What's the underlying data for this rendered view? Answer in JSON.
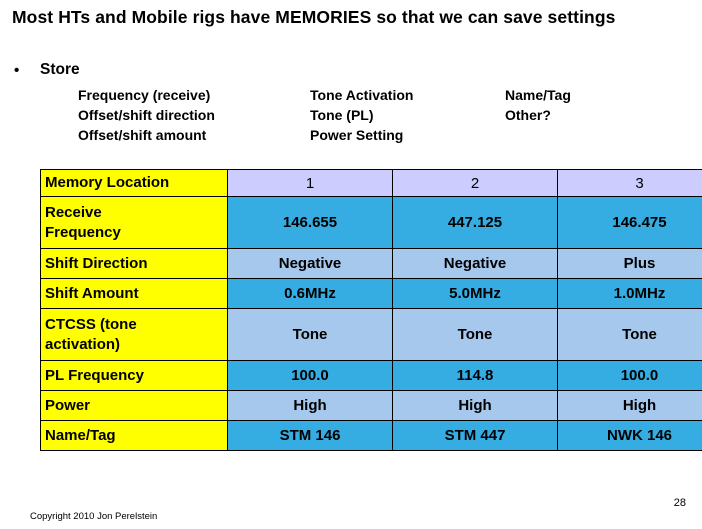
{
  "slide": {
    "title": "Most HTs and Mobile rigs have MEMORIES so that we can save settings",
    "bullet_glyph": "•",
    "store_label": "Store",
    "store_columns": [
      [
        "Frequency (receive)",
        "Offset/shift direction",
        "Offset/shift amount"
      ],
      [
        "Tone Activation",
        "Tone (PL)",
        "Power Setting"
      ],
      [
        "Name/Tag",
        "Other?"
      ]
    ],
    "footer": {
      "copyright": "Copyright 2010 Jon Perelstein",
      "page_number": "28"
    }
  },
  "table": {
    "header": {
      "label": "Memory Location",
      "values": [
        "1",
        "2",
        "3"
      ]
    },
    "rows": [
      {
        "label": "Receive\nFrequency",
        "values": [
          "146.655",
          "447.125",
          "146.475"
        ]
      },
      {
        "label": "Shift Direction",
        "values": [
          "Negative",
          "Negative",
          "Plus"
        ]
      },
      {
        "label": "Shift Amount",
        "values": [
          "0.6MHz",
          "5.0MHz",
          "1.0MHz"
        ]
      },
      {
        "label": "CTCSS (tone\nactivation)",
        "values": [
          "Tone",
          "Tone",
          "Tone"
        ]
      },
      {
        "label": "PL Frequency",
        "values": [
          "100.0",
          "114.8",
          "100.0"
        ]
      },
      {
        "label": "Power",
        "values": [
          "High",
          "High",
          "High"
        ]
      },
      {
        "label": "Name/Tag",
        "values": [
          "STM 146",
          "STM 447",
          "NWK 146"
        ]
      }
    ]
  },
  "colors": {
    "label_bg": "#FFFF00",
    "header_bg": "#CCCCFF",
    "cell_dark": "#35ADE3",
    "cell_light": "#A5C8EC",
    "text": "#000000",
    "background": "#FFFFFF"
  }
}
